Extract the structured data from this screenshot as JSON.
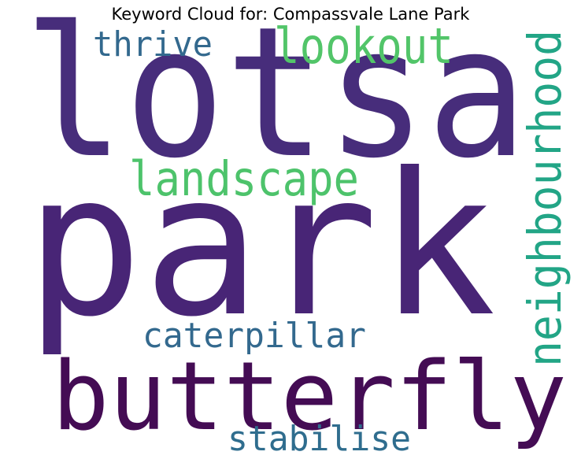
{
  "title": "Keyword Cloud for: Compassvale Lane Park",
  "words": [
    {
      "key": "lotsa",
      "text": "lotsa",
      "color": "#472D7B"
    },
    {
      "key": "park",
      "text": "park",
      "color": "#482576"
    },
    {
      "key": "butterfly",
      "text": "butterfly",
      "color": "#440C54"
    },
    {
      "key": "thrive",
      "text": "thrive",
      "color": "#33698E"
    },
    {
      "key": "lookout",
      "text": "lookout",
      "color": "#52C569"
    },
    {
      "key": "landscape",
      "text": "landscape",
      "color": "#4DC36B"
    },
    {
      "key": "neighbourhood",
      "text": "neighbourhood",
      "color": "#22A586"
    },
    {
      "key": "caterpillar",
      "text": "caterpillar",
      "color": "#33698E"
    },
    {
      "key": "stabilise",
      "text": "stabilise",
      "color": "#2F6D8E"
    }
  ]
}
